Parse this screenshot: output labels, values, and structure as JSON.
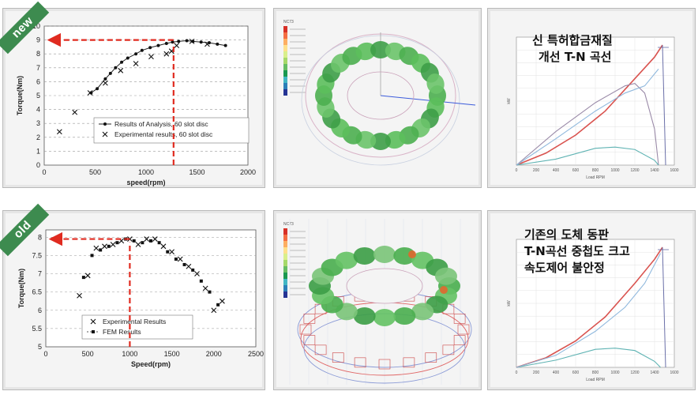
{
  "badges": {
    "top": "new",
    "bottom": "old"
  },
  "notes": {
    "top": [
      "신 특허합금재질",
      "개선 T-N 곡선"
    ],
    "bottom": [
      "기존의 도체 동판",
      "T-N곡선 중첩도 크고",
      "속도제어 불안정"
    ]
  },
  "fem_views": {
    "top": {
      "legend_header": "NC73"
    },
    "bottom": {
      "legend_header": "NC73"
    }
  },
  "colors": {
    "red_arrow": "#e02b20",
    "ribbon": "#3d8b4f",
    "series_line": "#222222"
  },
  "chart_data": [
    {
      "type": "line",
      "xlabel": "speed(rpm)",
      "ylabel": "Torque(Nm)",
      "xlim": [
        0,
        2000
      ],
      "ylim": [
        0,
        10
      ],
      "xticks": [
        0,
        500,
        1000,
        1500,
        2000
      ],
      "yticks": [
        0,
        1,
        2,
        3,
        4,
        5,
        6,
        7,
        8,
        9,
        10
      ],
      "grid": "horizontal dashed",
      "legend_position": "bottom-right",
      "series": [
        {
          "name": "Results of Analysis, 60 slot disc",
          "marker": "dot",
          "x": [
            460,
            520,
            600,
            650,
            700,
            760,
            820,
            900,
            960,
            1040,
            1120,
            1200,
            1260,
            1320,
            1400,
            1460,
            1540,
            1620,
            1700,
            1780
          ],
          "y": [
            5.2,
            5.5,
            6.2,
            6.6,
            7.0,
            7.4,
            7.7,
            8.0,
            8.25,
            8.45,
            8.6,
            8.75,
            8.85,
            8.9,
            8.95,
            8.9,
            8.85,
            8.8,
            8.7,
            8.6
          ]
        },
        {
          "name": "Experimental results, 60 slot disc",
          "marker": "x",
          "x": [
            150,
            300,
            450,
            600,
            750,
            900,
            1050,
            1200,
            1250,
            1300,
            1450,
            1600
          ],
          "y": [
            2.4,
            3.8,
            5.2,
            5.9,
            6.8,
            7.3,
            7.8,
            8.0,
            8.2,
            8.6,
            8.9,
            8.7
          ]
        }
      ],
      "annotation": {
        "type": "dashed-arrows",
        "x": 1270,
        "y": 9
      }
    },
    {
      "type": "line",
      "xlabel": "Speed(rpm)",
      "ylabel": "Torque(Nm)",
      "xlim": [
        0,
        2500
      ],
      "ylim": [
        5,
        8.2
      ],
      "xticks": [
        0,
        500,
        1000,
        1500,
        2000,
        2500
      ],
      "yticks": [
        5,
        5.5,
        6,
        6.5,
        7,
        7.5,
        8
      ],
      "grid": "horizontal dashed",
      "legend_position": "bottom-center",
      "series": [
        {
          "name": "Experimental Results",
          "marker": "x",
          "x": [
            400,
            500,
            600,
            700,
            800,
            900,
            1000,
            1100,
            1200,
            1300,
            1400,
            1500,
            1600,
            1700,
            1800,
            1900,
            2000,
            2100
          ],
          "y": [
            6.4,
            6.95,
            7.7,
            7.75,
            7.8,
            7.9,
            7.95,
            7.8,
            7.95,
            7.95,
            7.75,
            7.6,
            7.4,
            7.2,
            7.0,
            6.6,
            6.0,
            6.25
          ]
        },
        {
          "name": "FEM Results",
          "marker": "square",
          "x": [
            450,
            550,
            650,
            750,
            850,
            950,
            1050,
            1150,
            1250,
            1350,
            1450,
            1550,
            1650,
            1750,
            1850,
            1950,
            2050
          ],
          "y": [
            6.9,
            7.5,
            7.65,
            7.75,
            7.85,
            7.95,
            7.9,
            7.85,
            7.9,
            7.85,
            7.6,
            7.4,
            7.25,
            7.1,
            6.8,
            6.5,
            6.15
          ]
        }
      ],
      "annotation": {
        "type": "dashed-arrows",
        "x": 1000,
        "y": 7.95
      }
    },
    {
      "type": "line",
      "xlabel": "Load RPM",
      "ylabel": "kW",
      "xlim": [
        0,
        1600
      ],
      "xticks": [
        0,
        200,
        400,
        600,
        800,
        1000,
        1200,
        1400,
        1600
      ],
      "series": [
        {
          "name": "",
          "color": "#d9534f",
          "x": [
            0,
            300,
            600,
            900,
            1200,
            1400,
            1480
          ],
          "y": [
            0,
            0.1,
            0.25,
            0.45,
            0.72,
            0.9,
            1.0
          ]
        },
        {
          "name": "",
          "color": "#9a8aa8",
          "x": [
            0,
            400,
            800,
            1100,
            1200,
            1300,
            1400,
            1440
          ],
          "y": [
            0,
            0.28,
            0.52,
            0.66,
            0.68,
            0.6,
            0.3,
            0
          ]
        },
        {
          "name": "",
          "color": "#5fb3b3",
          "x": [
            0,
            400,
            800,
            1000,
            1200,
            1400,
            1440
          ],
          "y": [
            0,
            0.05,
            0.14,
            0.15,
            0.13,
            0.04,
            0
          ]
        },
        {
          "name": "",
          "color": "#8fb8dd",
          "x": [
            0,
            400,
            800,
            1100,
            1300,
            1440
          ],
          "y": [
            0,
            0.22,
            0.45,
            0.6,
            0.66,
            0.8
          ]
        }
      ]
    },
    {
      "type": "line",
      "xlabel": "Load RPM",
      "ylabel": "kW",
      "xlim": [
        0,
        1600
      ],
      "xticks": [
        0,
        200,
        400,
        600,
        800,
        1000,
        1200,
        1400,
        1600
      ],
      "series": [
        {
          "name": "",
          "color": "#d9534f",
          "x": [
            0,
            300,
            600,
            900,
            1200,
            1400,
            1480
          ],
          "y": [
            0,
            0.08,
            0.22,
            0.42,
            0.7,
            0.9,
            1.0
          ]
        },
        {
          "name": "",
          "color": "#5fb3b3",
          "x": [
            0,
            400,
            800,
            1000,
            1200,
            1400,
            1460
          ],
          "y": [
            0,
            0.06,
            0.15,
            0.16,
            0.14,
            0.05,
            0
          ]
        },
        {
          "name": "",
          "color": "#8fb8dd",
          "x": [
            0,
            400,
            800,
            1100,
            1300,
            1460
          ],
          "y": [
            0,
            0.1,
            0.3,
            0.5,
            0.7,
            0.95
          ]
        }
      ]
    }
  ]
}
